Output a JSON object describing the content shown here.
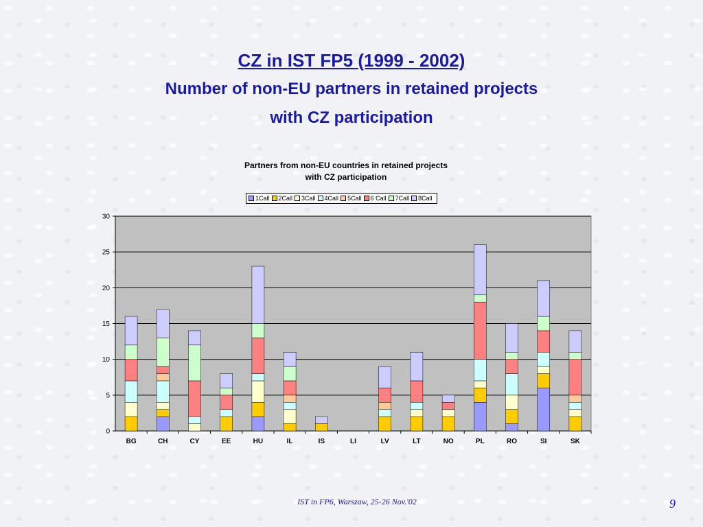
{
  "slide": {
    "title": "CZ in IST FP5 (1999 - 2002)",
    "subtitle_line1": "Number of non-EU partners in retained projects",
    "subtitle_line2": "with CZ participation",
    "footer": "IST in FP6, Warszaw, 25-26 Nov.'02",
    "page_number": "9"
  },
  "chart_data": {
    "type": "bar",
    "stacked": true,
    "title_line1": "Partners from non-EU countries in retained projects",
    "title_line2": "with CZ participation",
    "xlabel": "",
    "ylabel": "",
    "ylim": [
      0,
      30
    ],
    "yticks": [
      0,
      5,
      10,
      15,
      20,
      25,
      30
    ],
    "grid": true,
    "legend_position": "top",
    "plot_background": "#c0c0c0",
    "categories": [
      "BG",
      "CH",
      "CY",
      "EE",
      "HU",
      "IL",
      "IS",
      "LI",
      "LV",
      "LT",
      "NO",
      "PL",
      "RO",
      "SI",
      "SK"
    ],
    "series": [
      {
        "name": "1Call",
        "color": "#9999ff",
        "values": [
          0,
          2,
          0,
          0,
          2,
          0,
          0,
          0,
          0,
          0,
          0,
          4,
          1,
          6,
          0
        ]
      },
      {
        "name": "2Call",
        "color": "#ffcc00",
        "values": [
          2,
          1,
          0,
          2,
          2,
          1,
          1,
          0,
          2,
          2,
          2,
          2,
          2,
          2,
          2
        ]
      },
      {
        "name": "3Call",
        "color": "#ffffcc",
        "values": [
          2,
          1,
          1,
          0,
          3,
          2,
          0,
          0,
          0,
          1,
          1,
          1,
          2,
          1,
          1
        ]
      },
      {
        "name": "4Call",
        "color": "#ccffff",
        "values": [
          3,
          3,
          1,
          1,
          1,
          1,
          0,
          0,
          1,
          1,
          0,
          3,
          3,
          2,
          1
        ]
      },
      {
        "name": "5Call",
        "color": "#ffcc99",
        "values": [
          0,
          1,
          0,
          0,
          0,
          1,
          0,
          0,
          1,
          0,
          0,
          0,
          0,
          0,
          1
        ]
      },
      {
        "name": "6 Call",
        "color": "#ff8080",
        "values": [
          3,
          1,
          5,
          2,
          5,
          2,
          0,
          0,
          2,
          3,
          1,
          8,
          2,
          3,
          5
        ]
      },
      {
        "name": "7Call",
        "color": "#ccffcc",
        "values": [
          2,
          4,
          5,
          1,
          2,
          2,
          0,
          0,
          0,
          0,
          0,
          1,
          1,
          2,
          1
        ]
      },
      {
        "name": "8Call",
        "color": "#ccccff",
        "values": [
          4,
          4,
          2,
          2,
          8,
          2,
          1,
          0,
          3,
          4,
          1,
          7,
          4,
          5,
          3
        ]
      }
    ]
  }
}
